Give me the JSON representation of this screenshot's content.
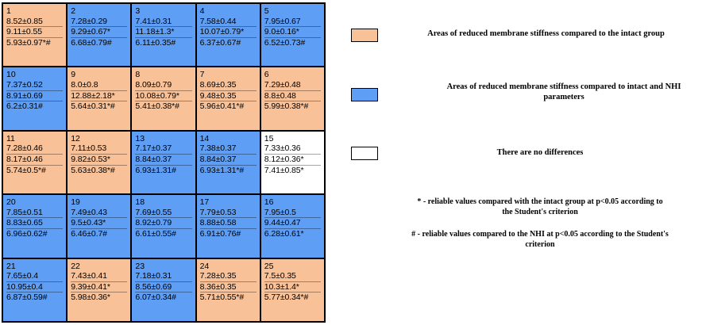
{
  "colors": {
    "reduced_vs_intact": "#f9c197",
    "reduced_vs_intact_and_nhi": "#5e9ff5",
    "no_difference": "#ffffff"
  },
  "grid": {
    "rows": [
      [
        {
          "number": "1",
          "category": "reduced_vs_intact",
          "values": [
            "8.52±0.85",
            "9.11±0.55",
            "5.93±0.97*#"
          ]
        },
        {
          "number": "2",
          "category": "reduced_vs_intact_and_nhi",
          "values": [
            "7.28±0.29",
            "9.29±0.67*",
            "6.68±0.79#"
          ]
        },
        {
          "number": "3",
          "category": "reduced_vs_intact_and_nhi",
          "values": [
            "7.41±0.31",
            "11.18±1.3*",
            "6.11±0.35#"
          ]
        },
        {
          "number": "4",
          "category": "reduced_vs_intact_and_nhi",
          "values": [
            "7.58±0.44",
            "10.07±0.79*",
            "6.37±0.67#"
          ]
        },
        {
          "number": "5",
          "category": "reduced_vs_intact_and_nhi",
          "values": [
            "7.95±0.67",
            "9.0±0.16*",
            "6.52±0.73#"
          ]
        }
      ],
      [
        {
          "number": "10",
          "category": "reduced_vs_intact_and_nhi",
          "values": [
            "7.37±0.52",
            "8.91±0.69",
            "6.2±0.31#"
          ]
        },
        {
          "number": "9",
          "category": "reduced_vs_intact",
          "values": [
            "8.0±0.8",
            "12.88±2.18*",
            "5.64±0.31*#"
          ]
        },
        {
          "number": "8",
          "category": "reduced_vs_intact",
          "values": [
            "8.09±0.79",
            "10.08±0.79*",
            "5.41±0.38*#"
          ]
        },
        {
          "number": "7",
          "category": "reduced_vs_intact",
          "values": [
            "8.69±0.35",
            "9.48±0.35",
            "5.96±0.41*#"
          ]
        },
        {
          "number": "6",
          "category": "reduced_vs_intact",
          "values": [
            "7.29±0.48",
            "8.8±0.48",
            "5.99±0.38*#"
          ]
        }
      ],
      [
        {
          "number": "11",
          "category": "reduced_vs_intact",
          "values": [
            "7.28±0.46",
            "8.17±0.46",
            "5.74±0.5*#"
          ]
        },
        {
          "number": "12",
          "category": "reduced_vs_intact",
          "values": [
            "7.11±0.53",
            "9.82±0.53*",
            "5.63±0.38*#"
          ]
        },
        {
          "number": "13",
          "category": "reduced_vs_intact_and_nhi",
          "values": [
            "7.17±0.37",
            "8.84±0.37",
            "6.93±1.31#"
          ]
        },
        {
          "number": "14",
          "category": "reduced_vs_intact_and_nhi",
          "values": [
            "7.38±0.37",
            "8.84±0.37",
            "6.93±1.31*#"
          ]
        },
        {
          "number": "15",
          "category": "no_difference",
          "values": [
            "7.33±0.36",
            "8.12±0.36*",
            "7.41±0.85*"
          ]
        }
      ],
      [
        {
          "number": "20",
          "category": "reduced_vs_intact_and_nhi",
          "values": [
            "7.85±0.51",
            "8.83±0.65",
            "6.96±0.62#"
          ]
        },
        {
          "number": "19",
          "category": "reduced_vs_intact_and_nhi",
          "values": [
            "7.49±0.43",
            "9.5±0.43*",
            "6.46±0.7#"
          ]
        },
        {
          "number": "18",
          "category": "reduced_vs_intact_and_nhi",
          "values": [
            "7.69±0.55",
            "8.92±0.79",
            "6.61±0.55#"
          ]
        },
        {
          "number": "17",
          "category": "reduced_vs_intact_and_nhi",
          "values": [
            "7.79±0.53",
            "8.88±0.58",
            "6.91±0.76#"
          ]
        },
        {
          "number": "16",
          "category": "reduced_vs_intact_and_nhi",
          "values": [
            "7.95±0.5",
            "9.44±0.47",
            "6.28±0.61*"
          ]
        }
      ],
      [
        {
          "number": "21",
          "category": "reduced_vs_intact_and_nhi",
          "values": [
            "7.65±0.4",
            "10.95±0.4",
            "6.87±0.59#"
          ]
        },
        {
          "number": "22",
          "category": "reduced_vs_intact",
          "values": [
            "7.43±0.41",
            "9.39±0.41*",
            "5.98±0.36*"
          ]
        },
        {
          "number": "23",
          "category": "reduced_vs_intact_and_nhi",
          "values": [
            "7.18±0.31",
            "8.56±0.69",
            "6.07±0.34#"
          ]
        },
        {
          "number": "24",
          "category": "reduced_vs_intact",
          "values": [
            "7.28±0.35",
            "8.36±0.35",
            "5.71±0.55*#"
          ]
        },
        {
          "number": "25",
          "category": "reduced_vs_intact",
          "values": [
            "7.5±0.35",
            "10.3±1.4*",
            "5.77±0.34*#"
          ]
        }
      ]
    ]
  },
  "legend": {
    "orange_text": "Areas of reduced membrane stiffness compared to the intact group",
    "blue_text": "Areas of reduced membrane stiffness compared to intact and NHI parameters",
    "white_text": "There are no differences"
  },
  "notes": {
    "asterisk": "* - reliable values compared with the intact group at p<0.05 according to the Student's criterion",
    "hash": "# - reliable values compared to the NHI at p<0.05 according to the Student's criterion"
  }
}
